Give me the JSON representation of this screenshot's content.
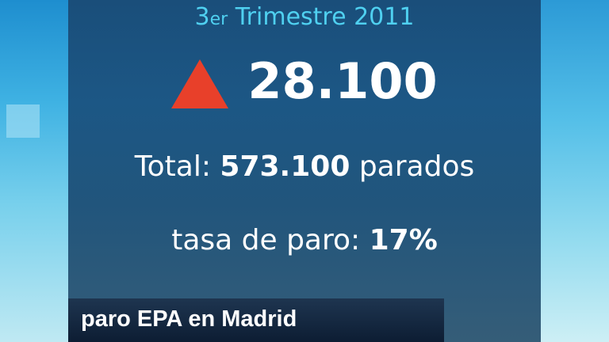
{
  "header": {
    "title_num": "3",
    "title_sup": "er",
    "title_rest": " Trimestre 2011"
  },
  "change": {
    "icon": "up-triangle-icon",
    "color": "#e8402a",
    "value": "28.100"
  },
  "total": {
    "label": "Total: ",
    "value": "573.100",
    "unit": " parados"
  },
  "rate": {
    "label": "tasa de paro: ",
    "value": "17%"
  },
  "caption": "paro EPA en Madrid"
}
